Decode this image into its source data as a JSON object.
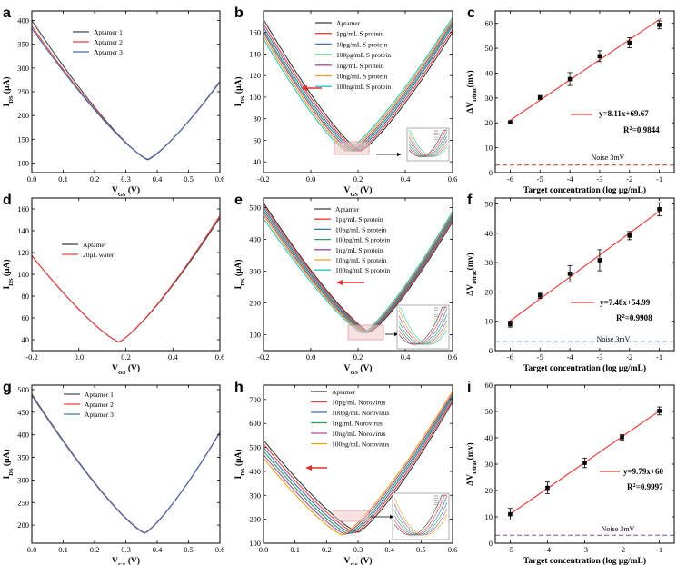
{
  "chart_data": [
    {
      "id": "a",
      "type": "line",
      "panel_label": "a",
      "xlabel": "V",
      "xlabel_sub": "GS",
      "xlabel_unit": " (V)",
      "ylabel": "I",
      "ylabel_sub": "DS",
      "ylabel_unit": " (μA)",
      "xlim": [
        0,
        0.6
      ],
      "ylim": [
        80,
        420
      ],
      "xticks": [
        0.0,
        0.1,
        0.2,
        0.3,
        0.4,
        0.5,
        0.6
      ],
      "xtick_labels": [
        "0.0",
        "0.1",
        "0.2",
        "0.3",
        "0.4",
        "0.5",
        "0.6"
      ],
      "yticks": [
        100,
        150,
        200,
        250,
        300,
        350,
        400
      ],
      "ytick_labels": [
        "100",
        "150",
        "200",
        "250",
        "300",
        "350",
        "400"
      ],
      "legend_position": "top-center",
      "series": [
        {
          "name": "Aptamer  1",
          "color": "#4a4a4a",
          "vmin": 0.37,
          "imin": 107,
          "x0val": 400,
          "x1val": 272
        },
        {
          "name": "Aptamer  2",
          "color": "#e8413c",
          "vmin": 0.37,
          "imin": 108,
          "x0val": 388,
          "x1val": 270
        },
        {
          "name": "Aptamer  3",
          "color": "#3f6fb5",
          "vmin": 0.37,
          "imin": 108,
          "x0val": 383,
          "x1val": 271
        }
      ]
    },
    {
      "id": "b",
      "type": "line",
      "panel_label": "b",
      "xlabel": "V",
      "xlabel_sub": "GS",
      "xlabel_unit": " (V)",
      "ylabel": "I",
      "ylabel_sub": "DS",
      "ylabel_unit": " (μA)",
      "xlim": [
        -0.2,
        0.6
      ],
      "ylim": [
        30,
        180
      ],
      "xticks": [
        -0.2,
        0.0,
        0.2,
        0.4,
        0.6
      ],
      "xtick_labels": [
        "-0.2",
        "0.0",
        "0.2",
        "0.4",
        "0.6"
      ],
      "yticks": [
        40,
        60,
        80,
        100,
        120,
        140,
        160
      ],
      "ytick_labels": [
        "40",
        "60",
        "80",
        "100",
        "120",
        "140",
        "160"
      ],
      "legend_position": "top-right",
      "arrow": "left",
      "inset": true,
      "series": [
        {
          "name": "Aptamer",
          "color": "#3a3a3a",
          "vmin": 0.21,
          "imin": 50,
          "x0val": 172,
          "x1val": 160
        },
        {
          "name": "1pg/mL S protein",
          "color": "#e8413c",
          "vmin": 0.2,
          "imin": 50,
          "x0val": 168,
          "x1val": 163
        },
        {
          "name": "10pg/mL S protein",
          "color": "#3f6fb5",
          "vmin": 0.19,
          "imin": 50,
          "x0val": 165,
          "x1val": 166
        },
        {
          "name": "100pg/mL S protein",
          "color": "#2e9e5b",
          "vmin": 0.18,
          "imin": 50,
          "x0val": 162,
          "x1val": 168
        },
        {
          "name": "1ng/mL S protein",
          "color": "#a64ca6",
          "vmin": 0.17,
          "imin": 50,
          "x0val": 160,
          "x1val": 170
        },
        {
          "name": "10ng/mL S protein",
          "color": "#e8a21c",
          "vmin": 0.16,
          "imin": 50,
          "x0val": 157,
          "x1val": 172
        },
        {
          "name": "100ng/mL S protein",
          "color": "#2ec4c4",
          "vmin": 0.15,
          "imin": 50,
          "x0val": 154,
          "x1val": 174
        }
      ]
    },
    {
      "id": "c",
      "type": "scatter",
      "panel_label": "c",
      "xlabel": "Target concentration (log  μg/mL)",
      "ylabel": "ΔV",
      "ylabel_sub": "Dirac",
      "ylabel_unit": "(mv)",
      "xlim": [
        -6.5,
        -0.5
      ],
      "ylim": [
        0,
        65
      ],
      "xticks": [
        -6,
        -5,
        -4,
        -3,
        -2,
        -1
      ],
      "xtick_labels": [
        "-6",
        "-5",
        "-4",
        "-3",
        "-2",
        "-1"
      ],
      "yticks": [
        0,
        10,
        20,
        30,
        40,
        50,
        60
      ],
      "ytick_labels": [
        "0",
        "10",
        "20",
        "30",
        "40",
        "50",
        "60"
      ],
      "x": [
        -6,
        -5,
        -4,
        -3,
        -2,
        -1
      ],
      "y": [
        20.2,
        30.2,
        37.6,
        46.8,
        52.2,
        59.4
      ],
      "yerr": [
        0.6,
        0.8,
        2.6,
        2.2,
        2.0,
        1.6
      ],
      "fit": {
        "slope": 8.11,
        "intercept": 69.67
      },
      "equation": "y=8.11x+69.67",
      "r2_label": "R",
      "r2_sup": "2",
      "r2_value": "=0.9844",
      "noise_label": "Noise 3mV",
      "noise_value": 3,
      "noise_color": "#c0392b",
      "fit_color": "#e8413c"
    },
    {
      "id": "d",
      "type": "line",
      "panel_label": "d",
      "xlabel": "V",
      "xlabel_sub": "GS",
      "xlabel_unit": " (V)",
      "ylabel": "I",
      "ylabel_sub": "DS",
      "ylabel_unit": " (μA)",
      "xlim": [
        -0.2,
        0.6
      ],
      "ylim": [
        30,
        170
      ],
      "xticks": [
        -0.2,
        0.0,
        0.2,
        0.4,
        0.6
      ],
      "xtick_labels": [
        "-0.2",
        "0.0",
        "0.2",
        "0.4",
        "0.6"
      ],
      "yticks": [
        40,
        60,
        80,
        100,
        120,
        140,
        160
      ],
      "ytick_labels": [
        "40",
        "60",
        "80",
        "100",
        "120",
        "140",
        "160"
      ],
      "legend_position": "top-center",
      "series": [
        {
          "name": "Aptamer",
          "color": "#3a3a3a",
          "vmin": 0.17,
          "imin": 38,
          "x0val": 117,
          "x1val": 152
        },
        {
          "name": "20μL water",
          "color": "#e8413c",
          "vmin": 0.17,
          "imin": 38,
          "x0val": 117,
          "x1val": 154
        }
      ]
    },
    {
      "id": "e",
      "type": "line",
      "panel_label": "e",
      "xlabel": "V",
      "xlabel_sub": "GS",
      "xlabel_unit": " (V)",
      "ylabel": "I",
      "ylabel_sub": "DS",
      "ylabel_unit": " (μA)",
      "xlim": [
        -0.2,
        0.6
      ],
      "ylim": [
        50,
        530
      ],
      "xticks": [
        -0.2,
        0.0,
        0.2,
        0.4,
        0.6
      ],
      "xtick_labels": [
        "-0.2",
        "0.0",
        "0.2",
        "0.4",
        "0.6"
      ],
      "yticks": [
        100,
        200,
        300,
        400,
        500
      ],
      "ytick_labels": [
        "100",
        "200",
        "300",
        "400",
        "500"
      ],
      "legend_position": "top-right",
      "arrow": "left",
      "inset": true,
      "series": [
        {
          "name": "Aptamer",
          "color": "#3a3a3a",
          "vmin": 0.25,
          "imin": 108,
          "x0val": 515,
          "x1val": 455
        },
        {
          "name": "1pg/mL S protein",
          "color": "#e8413c",
          "vmin": 0.245,
          "imin": 108,
          "x0val": 508,
          "x1val": 462
        },
        {
          "name": "10pg/mL S protein",
          "color": "#3f6fb5",
          "vmin": 0.24,
          "imin": 107,
          "x0val": 500,
          "x1val": 468
        },
        {
          "name": "100pg/mL S protein",
          "color": "#2e9e5b",
          "vmin": 0.235,
          "imin": 107,
          "x0val": 492,
          "x1val": 474
        },
        {
          "name": "1ng/mL S protein",
          "color": "#a64ca6",
          "vmin": 0.23,
          "imin": 106,
          "x0val": 484,
          "x1val": 479
        },
        {
          "name": "10ng/mL S protein",
          "color": "#e8a21c",
          "vmin": 0.225,
          "imin": 106,
          "x0val": 476,
          "x1val": 484
        },
        {
          "name": "100ng/mL S protein",
          "color": "#2ec4c4",
          "vmin": 0.22,
          "imin": 105,
          "x0val": 466,
          "x1val": 488
        }
      ]
    },
    {
      "id": "f",
      "type": "scatter",
      "panel_label": "f",
      "xlabel": "Target concentration (log  μg/mL)",
      "ylabel": "ΔV",
      "ylabel_sub": "Dirac",
      "ylabel_unit": "(mv)",
      "xlim": [
        -6.5,
        -0.5
      ],
      "ylim": [
        0,
        52
      ],
      "xticks": [
        -6,
        -5,
        -4,
        -3,
        -2,
        -1
      ],
      "xtick_labels": [
        "-6",
        "-5",
        "-4",
        "-3",
        "-2",
        "-1"
      ],
      "yticks": [
        0,
        10,
        20,
        30,
        40,
        50
      ],
      "ytick_labels": [
        "0",
        "10",
        "20",
        "30",
        "40",
        "50"
      ],
      "x": [
        -6,
        -5,
        -4,
        -3,
        -2,
        -1
      ],
      "y": [
        9.0,
        18.8,
        26.2,
        30.8,
        39.2,
        48.2
      ],
      "yerr": [
        1.0,
        1.0,
        2.8,
        3.6,
        1.4,
        2.2
      ],
      "fit": {
        "slope": 7.48,
        "intercept": 54.99
      },
      "equation": "y=7.48x+54.99",
      "r2_label": "R",
      "r2_sup": "2",
      "r2_value": "=0.9908",
      "noise_label": "Noise 3mV",
      "noise_value": 3,
      "noise_color": "#2c5d8a",
      "fit_color": "#e8413c"
    },
    {
      "id": "g",
      "type": "line",
      "panel_label": "g",
      "xlabel": "V",
      "xlabel_sub": "GS",
      "xlabel_unit": " (V)",
      "ylabel": "I",
      "ylabel_sub": "DS",
      "ylabel_unit": " (μA)",
      "xlim": [
        0,
        0.6
      ],
      "ylim": [
        160,
        510
      ],
      "xticks": [
        0.0,
        0.1,
        0.2,
        0.3,
        0.4,
        0.5,
        0.6
      ],
      "xtick_labels": [
        "0.0",
        "0.1",
        "0.2",
        "0.3",
        "0.4",
        "0.5",
        "0.6"
      ],
      "yticks": [
        200,
        250,
        300,
        350,
        400,
        450,
        500
      ],
      "ytick_labels": [
        "200",
        "250",
        "300",
        "350",
        "400",
        "450",
        "500"
      ],
      "legend_position": "top-right",
      "series": [
        {
          "name": "Aptamer  1",
          "color": "#4a4a4a",
          "vmin": 0.36,
          "imin": 183,
          "x0val": 490,
          "x1val": 405
        },
        {
          "name": "Aptamer  2",
          "color": "#e8413c",
          "vmin": 0.36,
          "imin": 183,
          "x0val": 488,
          "x1val": 405
        },
        {
          "name": "Aptamer  3",
          "color": "#3f6fb5",
          "vmin": 0.36,
          "imin": 182,
          "x0val": 487,
          "x1val": 406
        }
      ]
    },
    {
      "id": "h",
      "type": "line",
      "panel_label": "h",
      "xlabel": "V",
      "xlabel_sub": "GS",
      "xlabel_unit": " (V)",
      "ylabel": "I",
      "ylabel_sub": "DS",
      "ylabel_unit": " (μA)",
      "xlim": [
        0,
        0.6
      ],
      "ylim": [
        100,
        760
      ],
      "xticks": [
        0.0,
        0.1,
        0.2,
        0.3,
        0.4,
        0.5,
        0.6
      ],
      "xtick_labels": [
        "0.0",
        "0.1",
        "0.2",
        "0.3",
        "0.4",
        "0.5",
        "0.6"
      ],
      "yticks": [
        100,
        200,
        300,
        400,
        500,
        600,
        700
      ],
      "ytick_labels": [
        "100",
        "200",
        "300",
        "400",
        "500",
        "600",
        "700"
      ],
      "legend_position": "top-center",
      "arrow": "left",
      "inset": true,
      "series": [
        {
          "name": "Aptamer",
          "color": "#3a3a3a",
          "vmin": 0.3,
          "imin": 145,
          "x0val": 530,
          "x1val": 690
        },
        {
          "name": "10pg/mL Norovirus",
          "color": "#e8413c",
          "vmin": 0.29,
          "imin": 143,
          "x0val": 515,
          "x1val": 700
        },
        {
          "name": "100pg/mL Norovirus",
          "color": "#3f6fb5",
          "vmin": 0.28,
          "imin": 141,
          "x0val": 500,
          "x1val": 710
        },
        {
          "name": "1ng/mL Norovirus",
          "color": "#2e9e5b",
          "vmin": 0.27,
          "imin": 139,
          "x0val": 485,
          "x1val": 718
        },
        {
          "name": "10ng/mL Norovirus",
          "color": "#a64ca6",
          "vmin": 0.26,
          "imin": 137,
          "x0val": 470,
          "x1val": 726
        },
        {
          "name": "100ng/mL Norovirus",
          "color": "#e8a21c",
          "vmin": 0.25,
          "imin": 134,
          "x0val": 455,
          "x1val": 735
        }
      ]
    },
    {
      "id": "i",
      "type": "scatter",
      "panel_label": "i",
      "xlabel": "Target concentration (log  μg/mL)",
      "ylabel": "ΔV",
      "ylabel_sub": "Dirac",
      "ylabel_unit": "(mv)",
      "xlim": [
        -5.4,
        -0.6
      ],
      "ylim": [
        0,
        60
      ],
      "xticks": [
        -5,
        -4,
        -3,
        -2,
        -1
      ],
      "xtick_labels": [
        "-5",
        "-4",
        "-3",
        "-2",
        "-1"
      ],
      "yticks": [
        0,
        10,
        20,
        30,
        40,
        50,
        60
      ],
      "ytick_labels": [
        "0",
        "10",
        "20",
        "30",
        "40",
        "50",
        "60"
      ],
      "x": [
        -5,
        -4,
        -3,
        -2,
        -1
      ],
      "y": [
        11.0,
        21.0,
        30.5,
        40.2,
        50.2
      ],
      "yerr": [
        2.2,
        2.2,
        1.8,
        1.0,
        1.5
      ],
      "fit": {
        "slope": 9.79,
        "intercept": 60
      },
      "equation": "y=9.79x+60",
      "r2_label": "R",
      "r2_sup": "2",
      "r2_value": "=0.9997",
      "noise_label": "Noise 3mV",
      "noise_value": 3,
      "noise_color": "#7b4fa6",
      "fit_color": "#e8413c"
    }
  ]
}
